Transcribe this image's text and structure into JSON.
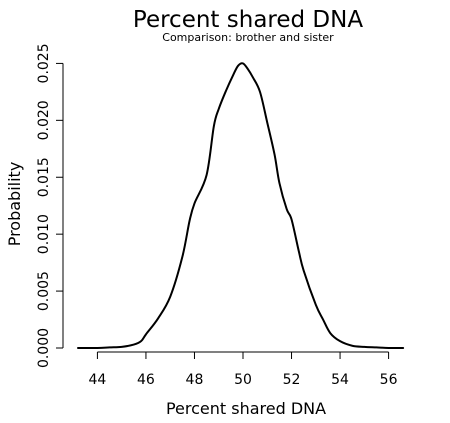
{
  "chart_data": {
    "type": "line",
    "title": "Percent shared DNA",
    "subtitle": "Comparison: brother and sister",
    "xlabel": "Percent shared DNA",
    "ylabel": "Probability",
    "xlim": [
      43.2,
      56.8
    ],
    "ylim": [
      0,
      0.0253
    ],
    "x_ticks": [
      44,
      46,
      48,
      50,
      52,
      54,
      56
    ],
    "x_tick_labels": [
      "44",
      "46",
      "48",
      "50",
      "52",
      "54",
      "56"
    ],
    "y_ticks": [
      0,
      0.005,
      0.01,
      0.015,
      0.02,
      0.025
    ],
    "y_tick_labels": [
      "0.000",
      "0.005",
      "0.010",
      "0.015",
      "0.020",
      "0.025"
    ],
    "grid": false,
    "series": [
      {
        "color": "#000000",
        "x": [
          43.2,
          44.0,
          44.5,
          45.0,
          45.5,
          45.8,
          46.0,
          46.5,
          47.0,
          47.5,
          47.8,
          48.0,
          48.5,
          48.8,
          49.0,
          49.3,
          49.6,
          49.8,
          50.0,
          50.2,
          50.4,
          50.7,
          51.0,
          51.3,
          51.5,
          51.8,
          52.0,
          52.3,
          52.5,
          53.0,
          53.3,
          53.6,
          54.0,
          54.5,
          55.0,
          55.5,
          56.0,
          56.6
        ],
        "y": [
          0.0,
          0.0,
          5e-05,
          0.0001,
          0.0003,
          0.0006,
          0.0012,
          0.0026,
          0.0045,
          0.008,
          0.0112,
          0.0127,
          0.0152,
          0.0195,
          0.021,
          0.0226,
          0.024,
          0.0248,
          0.025,
          0.0245,
          0.0238,
          0.0225,
          0.0198,
          0.017,
          0.0145,
          0.0122,
          0.0113,
          0.0085,
          0.0068,
          0.0038,
          0.0025,
          0.0013,
          0.0006,
          0.0002,
          0.0001,
          5e-05,
          0.0,
          0.0
        ]
      }
    ]
  }
}
